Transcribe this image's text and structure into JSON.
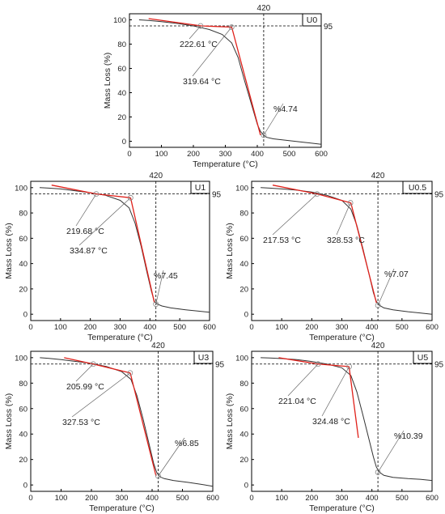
{
  "chart_data": [
    {
      "type": "line",
      "panel_label": "U0",
      "xlabel": "Temperature (°C)",
      "ylabel": "Mass Loss (%)",
      "xlim": [
        0,
        600
      ],
      "ylim": [
        -5,
        105
      ],
      "xticks": [
        "0",
        "100",
        "200",
        "300",
        "400",
        "500",
        "600"
      ],
      "yticks": [
        "0",
        "20",
        "40",
        "60",
        "80",
        "100"
      ],
      "hline": {
        "y": 95,
        "label": "95"
      },
      "vline": {
        "x": 420,
        "label": "420"
      },
      "curve": {
        "x": [
          30,
          60,
          100,
          150,
          200,
          250,
          290,
          320,
          340,
          360,
          380,
          400,
          410,
          420,
          430,
          450,
          500,
          550,
          600
        ],
        "y": [
          100,
          99.5,
          98.5,
          97,
          95,
          92,
          88,
          81,
          69,
          50,
          32,
          14,
          8,
          5,
          3.2,
          2,
          0.5,
          -1,
          -2.5
        ]
      },
      "tangents": [
        {
          "x": [
            60,
            225
          ],
          "y": [
            101,
            95
          ]
        },
        {
          "x": [
            225,
            320
          ],
          "y": [
            95,
            94
          ]
        },
        {
          "x": [
            320,
            410
          ],
          "y": [
            94,
            5
          ]
        }
      ],
      "annotations": [
        {
          "text": "222.61 °C",
          "x": 222.61,
          "y": 95
        },
        {
          "text": "319.64 °C",
          "x": 319.64,
          "y": 94
        },
        {
          "text": "%4.74",
          "x": 420,
          "y": 5
        }
      ]
    },
    {
      "type": "line",
      "panel_label": "U1",
      "xlabel": "Temperature (°C)",
      "ylabel": "Mass Loss (%)",
      "xlim": [
        0,
        600
      ],
      "ylim": [
        -5,
        105
      ],
      "xticks": [
        "0",
        "100",
        "200",
        "300",
        "400",
        "500",
        "600"
      ],
      "yticks": [
        "0",
        "20",
        "40",
        "60",
        "80",
        "100"
      ],
      "hline": {
        "y": 95,
        "label": "95"
      },
      "vline": {
        "x": 420,
        "label": "420"
      },
      "curve": {
        "x": [
          30,
          60,
          100,
          150,
          200,
          250,
          300,
          330,
          350,
          370,
          390,
          405,
          415,
          425,
          440,
          470,
          520,
          560,
          600
        ],
        "y": [
          100,
          99.6,
          99,
          97.5,
          96,
          94,
          90,
          84,
          72,
          54,
          33,
          18,
          10,
          8,
          6.5,
          5,
          3.5,
          2.5,
          1.5
        ]
      },
      "tangents": [
        {
          "x": [
            70,
            220
          ],
          "y": [
            102,
            95
          ]
        },
        {
          "x": [
            220,
            335
          ],
          "y": [
            95,
            92
          ]
        },
        {
          "x": [
            335,
            415
          ],
          "y": [
            92,
            9
          ]
        }
      ],
      "annotations": [
        {
          "text": "219.68 °C",
          "x": 219.68,
          "y": 95
        },
        {
          "text": "334.87 °C",
          "x": 334.87,
          "y": 92
        },
        {
          "text": "%7.45",
          "x": 420,
          "y": 8
        }
      ]
    },
    {
      "type": "line",
      "panel_label": "U0.5",
      "xlabel": "Temperature (°C)",
      "ylabel": "Mass Loss (%)",
      "xlim": [
        0,
        600
      ],
      "ylim": [
        -5,
        105
      ],
      "xticks": [
        "0",
        "100",
        "200",
        "300",
        "400",
        "500",
        "600"
      ],
      "yticks": [
        "0",
        "20",
        "40",
        "60",
        "80",
        "100"
      ],
      "hline": {
        "y": 95,
        "label": "95"
      },
      "vline": {
        "x": 420,
        "label": "420"
      },
      "curve": {
        "x": [
          30,
          60,
          100,
          150,
          200,
          250,
          300,
          330,
          350,
          370,
          390,
          405,
          415,
          425,
          440,
          470,
          520,
          560,
          600
        ],
        "y": [
          100,
          99.6,
          99,
          98,
          96.5,
          94,
          90,
          83,
          70,
          52,
          32,
          17,
          10,
          7,
          5,
          3.5,
          2,
          1,
          0
        ]
      },
      "tangents": [
        {
          "x": [
            70,
            218
          ],
          "y": [
            102,
            95
          ]
        },
        {
          "x": [
            218,
            330
          ],
          "y": [
            95,
            88
          ]
        },
        {
          "x": [
            330,
            415
          ],
          "y": [
            88,
            9
          ]
        }
      ],
      "annotations": [
        {
          "text": "217.53 °C",
          "x": 217.53,
          "y": 95
        },
        {
          "text": "328.53 °C",
          "x": 328.53,
          "y": 88
        },
        {
          "text": "%7.07",
          "x": 420,
          "y": 7
        }
      ]
    },
    {
      "type": "line",
      "panel_label": "U3",
      "xlabel": "Temperature (°C)",
      "ylabel": "Mass Loss (%)",
      "xlim": [
        0,
        600
      ],
      "ylim": [
        -5,
        105
      ],
      "xticks": [
        "0",
        "100",
        "200",
        "300",
        "400",
        "500",
        "600"
      ],
      "yticks": [
        "0",
        "20",
        "40",
        "60",
        "80",
        "100"
      ],
      "hline": {
        "y": 95,
        "label": "95"
      },
      "vline": {
        "x": 420,
        "label": "420"
      },
      "curve": {
        "x": [
          30,
          60,
          100,
          150,
          200,
          250,
          300,
          330,
          350,
          370,
          390,
          405,
          415,
          425,
          440,
          470,
          520,
          560,
          600
        ],
        "y": [
          100,
          99.5,
          98.5,
          97,
          95.5,
          93,
          89,
          83,
          70,
          52,
          32,
          17,
          10,
          6.5,
          5,
          3.5,
          2,
          0.5,
          -1
        ]
      },
      "tangents": [
        {
          "x": [
            110,
            206
          ],
          "y": [
            100,
            95
          ]
        },
        {
          "x": [
            206,
            328
          ],
          "y": [
            95,
            88
          ]
        },
        {
          "x": [
            328,
            413
          ],
          "y": [
            88,
            7
          ]
        }
      ],
      "annotations": [
        {
          "text": "205.99 °C",
          "x": 205.99,
          "y": 95
        },
        {
          "text": "327.53 °C",
          "x": 327.53,
          "y": 88
        },
        {
          "text": "%6.85",
          "x": 420,
          "y": 7
        }
      ]
    },
    {
      "type": "line",
      "panel_label": "U5",
      "xlabel": "Temperature (°C)",
      "ylabel": "Mass Loss (%)",
      "xlim": [
        0,
        600
      ],
      "ylim": [
        -5,
        105
      ],
      "xticks": [
        "0",
        "100",
        "200",
        "300",
        "400",
        "500",
        "600"
      ],
      "yticks": [
        "0",
        "20",
        "40",
        "60",
        "80",
        "100"
      ],
      "hline": {
        "y": 95,
        "label": "95"
      },
      "vline": {
        "x": 420,
        "label": "420"
      },
      "curve": {
        "x": [
          30,
          60,
          100,
          150,
          200,
          250,
          300,
          330,
          350,
          370,
          390,
          405,
          415,
          425,
          440,
          470,
          520,
          560,
          600
        ],
        "y": [
          100,
          99.7,
          99.3,
          98.5,
          97,
          95,
          92,
          86,
          73,
          55,
          36,
          22,
          14,
          10,
          7.5,
          6,
          5,
          4.5,
          3.5
        ]
      },
      "tangents": [
        {
          "x": [
            90,
            221
          ],
          "y": [
            100,
            95
          ]
        },
        {
          "x": [
            221,
            324
          ],
          "y": [
            95,
            93
          ]
        },
        {
          "x": [
            324,
            355
          ],
          "y": [
            93,
            37
          ]
        }
      ],
      "annotations": [
        {
          "text": "221.04 °C",
          "x": 221.04,
          "y": 95
        },
        {
          "text": "324.48 °C",
          "x": 324.48,
          "y": 93
        },
        {
          "text": "%10.39",
          "x": 420,
          "y": 10
        }
      ]
    }
  ]
}
